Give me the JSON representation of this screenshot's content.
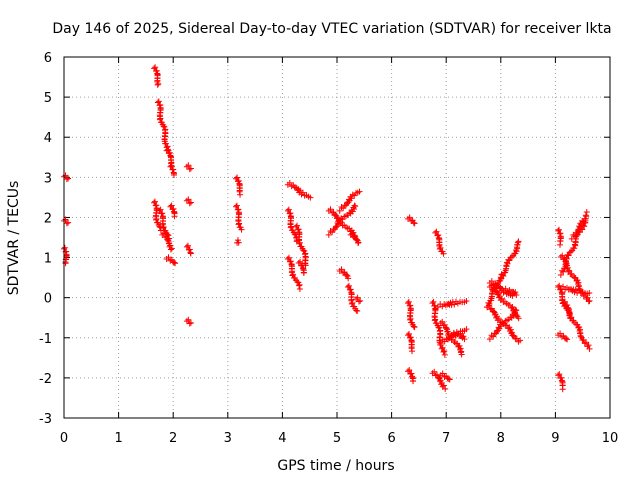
{
  "chart_data": {
    "type": "scatter",
    "title": "Day 146 of 2025, Sidereal Day-to-day VTEC variation (SDTVAR) for receiver lkta",
    "xlabel": "GPS time / hours",
    "ylabel": "SDTVAR / TECUs",
    "xlim": [
      0,
      10
    ],
    "ylim": [
      -3,
      6
    ],
    "x_ticks": [
      0,
      1,
      2,
      3,
      4,
      5,
      6,
      7,
      8,
      9,
      10
    ],
    "y_ticks": [
      -3,
      -2,
      -1,
      0,
      1,
      2,
      3,
      4,
      5,
      6
    ],
    "grid": true,
    "marker": "plus",
    "color": "#ff0000",
    "segments": [
      {
        "x": [
          0.0,
          0.05
        ],
        "y": [
          3.05,
          2.95
        ]
      },
      {
        "x": [
          0.0,
          0.05
        ],
        "y": [
          1.95,
          1.85
        ]
      },
      {
        "x": [
          0.0,
          0.05
        ],
        "y": [
          1.25,
          0.85
        ]
      },
      {
        "x": [
          1.65,
          1.75
        ],
        "y": [
          5.75,
          5.3
        ]
      },
      {
        "x": [
          1.72,
          1.9
        ],
        "y": [
          4.9,
          3.7
        ]
      },
      {
        "x": [
          1.88,
          2.0
        ],
        "y": [
          3.7,
          3.3
        ]
      },
      {
        "x": [
          1.95,
          2.0
        ],
        "y": [
          3.3,
          3.05
        ]
      },
      {
        "x": [
          1.65,
          1.75
        ],
        "y": [
          2.4,
          1.7
        ]
      },
      {
        "x": [
          1.75,
          1.9
        ],
        "y": [
          2.2,
          1.5
        ]
      },
      {
        "x": [
          1.8,
          2.0
        ],
        "y": [
          1.6,
          1.2
        ]
      },
      {
        "x": [
          1.88,
          2.02
        ],
        "y": [
          1.0,
          0.85
        ]
      },
      {
        "x": [
          1.95,
          2.02
        ],
        "y": [
          2.3,
          2.05
        ]
      },
      {
        "x": [
          2.25,
          2.3
        ],
        "y": [
          3.3,
          3.2
        ]
      },
      {
        "x": [
          2.25,
          2.3
        ],
        "y": [
          2.45,
          2.35
        ]
      },
      {
        "x": [
          2.25,
          2.3
        ],
        "y": [
          1.3,
          1.1
        ]
      },
      {
        "x": [
          2.25,
          2.3
        ],
        "y": [
          -0.55,
          -0.65
        ]
      },
      {
        "x": [
          3.15,
          3.25
        ],
        "y": [
          3.0,
          2.6
        ]
      },
      {
        "x": [
          3.15,
          3.25
        ],
        "y": [
          2.3,
          1.7
        ]
      },
      {
        "x": [
          3.17,
          3.18
        ],
        "y": [
          1.4,
          1.4
        ]
      },
      {
        "x": [
          4.1,
          4.5
        ],
        "y": [
          2.85,
          2.5
        ]
      },
      {
        "x": [
          4.1,
          4.25
        ],
        "y": [
          2.2,
          1.4
        ]
      },
      {
        "x": [
          4.25,
          4.45
        ],
        "y": [
          1.8,
          0.8
        ]
      },
      {
        "x": [
          4.1,
          4.3
        ],
        "y": [
          1.0,
          0.25
        ]
      },
      {
        "x": [
          4.3,
          4.4
        ],
        "y": [
          0.9,
          0.6
        ]
      },
      {
        "x": [
          4.85,
          5.35
        ],
        "y": [
          2.2,
          1.5
        ]
      },
      {
        "x": [
          4.85,
          5.35
        ],
        "y": [
          1.6,
          2.3
        ]
      },
      {
        "x": [
          5.05,
          5.4
        ],
        "y": [
          2.2,
          2.65
        ]
      },
      {
        "x": [
          5.25,
          5.4
        ],
        "y": [
          1.6,
          1.35
        ]
      },
      {
        "x": [
          5.05,
          5.2
        ],
        "y": [
          0.7,
          0.5
        ]
      },
      {
        "x": [
          5.2,
          5.35
        ],
        "y": [
          0.3,
          -0.35
        ]
      },
      {
        "x": [
          5.35,
          5.4
        ],
        "y": [
          0.0,
          -0.1
        ]
      },
      {
        "x": [
          6.3,
          6.4
        ],
        "y": [
          2.0,
          1.85
        ]
      },
      {
        "x": [
          6.3,
          6.4
        ],
        "y": [
          -0.1,
          -0.75
        ]
      },
      {
        "x": [
          6.3,
          6.4
        ],
        "y": [
          -0.9,
          -1.3
        ]
      },
      {
        "x": [
          6.3,
          6.4
        ],
        "y": [
          -1.8,
          -2.1
        ]
      },
      {
        "x": [
          6.8,
          6.95
        ],
        "y": [
          1.65,
          1.1
        ]
      },
      {
        "x": [
          6.75,
          6.95
        ],
        "y": [
          -0.1,
          -1.4
        ]
      },
      {
        "x": [
          6.85,
          7.35
        ],
        "y": [
          -0.2,
          -0.1
        ]
      },
      {
        "x": [
          6.9,
          7.3
        ],
        "y": [
          -0.6,
          -1.4
        ]
      },
      {
        "x": [
          6.9,
          7.35
        ],
        "y": [
          -1.1,
          -0.8
        ]
      },
      {
        "x": [
          6.75,
          7.0
        ],
        "y": [
          -1.85,
          -2.25
        ]
      },
      {
        "x": [
          6.9,
          7.05
        ],
        "y": [
          -1.9,
          -2.05
        ]
      },
      {
        "x": [
          7.1,
          7.35
        ],
        "y": [
          -0.9,
          -1.0
        ]
      },
      {
        "x": [
          7.75,
          8.0
        ],
        "y": [
          -0.2,
          0.55
        ]
      },
      {
        "x": [
          7.8,
          8.2
        ],
        "y": [
          0.4,
          0.05
        ]
      },
      {
        "x": [
          8.0,
          8.35
        ],
        "y": [
          0.5,
          1.4
        ]
      },
      {
        "x": [
          7.8,
          8.35
        ],
        "y": [
          0.3,
          -0.5
        ]
      },
      {
        "x": [
          7.75,
          8.35
        ],
        "y": [
          -0.2,
          -1.1
        ]
      },
      {
        "x": [
          7.8,
          8.3
        ],
        "y": [
          -1.0,
          -0.3
        ]
      },
      {
        "x": [
          8.05,
          8.3
        ],
        "y": [
          0.2,
          0.1
        ]
      },
      {
        "x": [
          9.05,
          9.1
        ],
        "y": [
          1.7,
          1.35
        ]
      },
      {
        "x": [
          9.1,
          9.6
        ],
        "y": [
          0.6,
          2.1
        ]
      },
      {
        "x": [
          9.3,
          9.55
        ],
        "y": [
          1.5,
          1.95
        ]
      },
      {
        "x": [
          9.1,
          9.6
        ],
        "y": [
          1.05,
          -0.1
        ]
      },
      {
        "x": [
          9.1,
          9.6
        ],
        "y": [
          0.25,
          0.1
        ]
      },
      {
        "x": [
          9.05,
          9.25
        ],
        "y": [
          0.3,
          -0.45
        ]
      },
      {
        "x": [
          9.15,
          9.6
        ],
        "y": [
          -0.1,
          -1.25
        ]
      },
      {
        "x": [
          9.05,
          9.2
        ],
        "y": [
          -0.9,
          -1.05
        ]
      },
      {
        "x": [
          9.05,
          9.15
        ],
        "y": [
          -1.9,
          -2.25
        ]
      }
    ]
  }
}
